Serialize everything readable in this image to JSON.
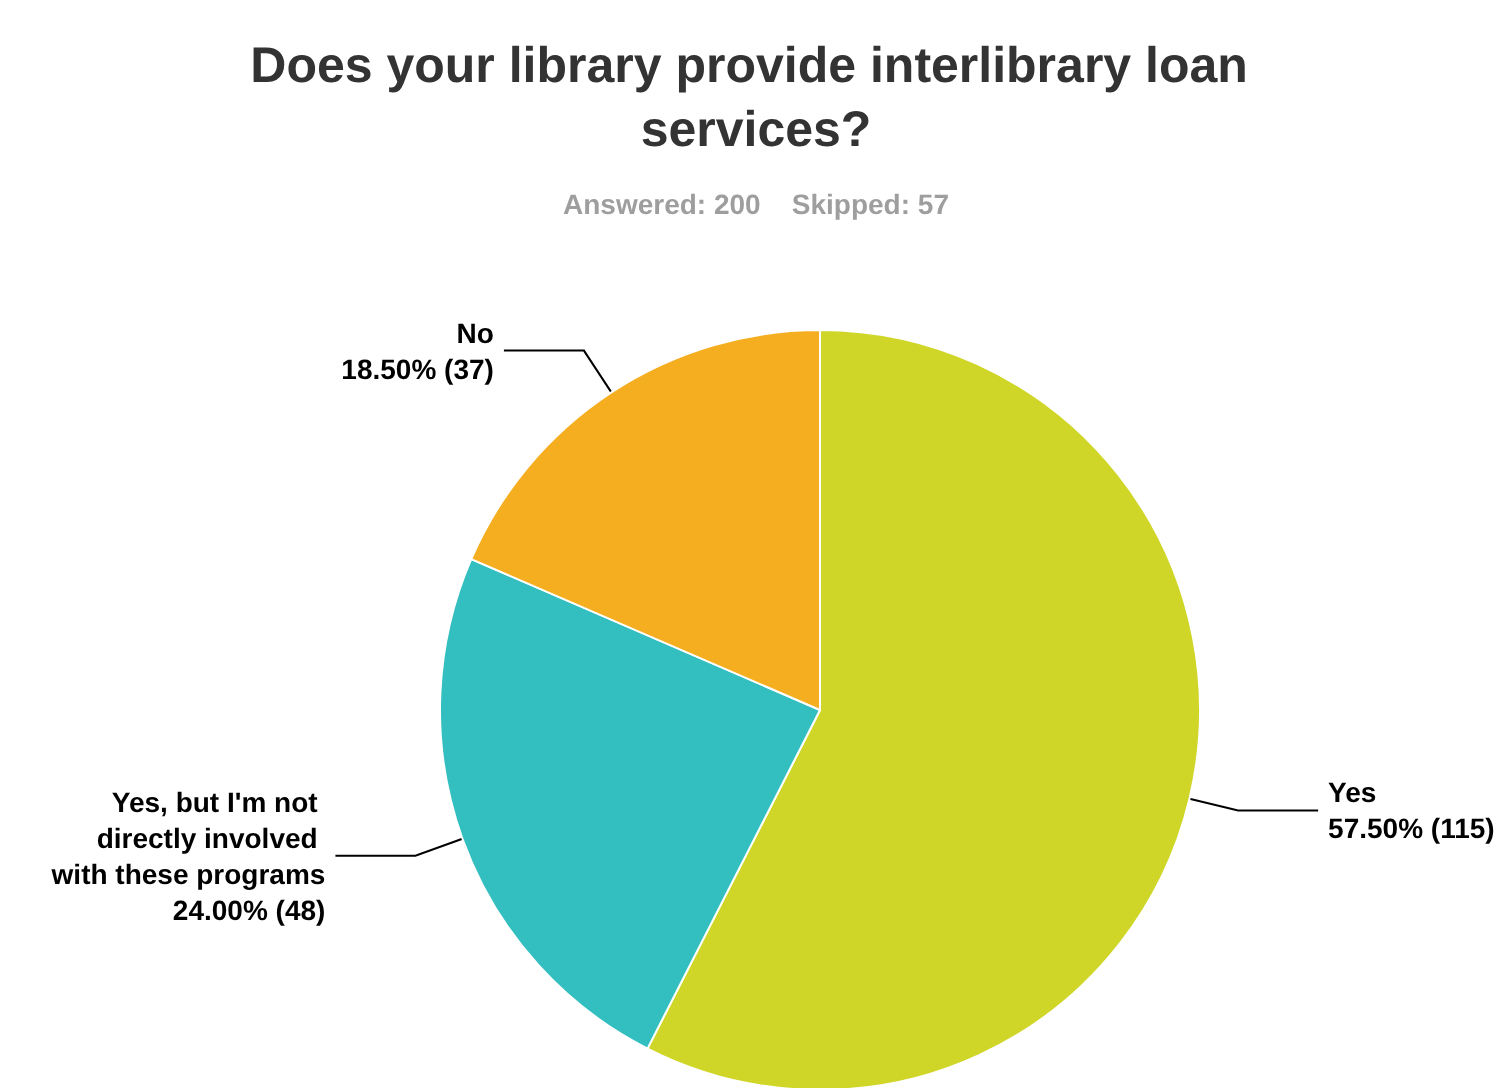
{
  "chart_data": {
    "type": "pie",
    "title": "Does your library provide interlibrary loan services?",
    "subtitle": "Answered: 200    Skipped: 57",
    "categories": [
      "Yes",
      "Yes, but I'm not directly involved with these programs",
      "No"
    ],
    "values": [
      57.5,
      24.0,
      18.5
    ],
    "value_labels": [
      "57.50% (115)",
      "24.00% (48)",
      "18.50% (37)"
    ],
    "colors": [
      "#cfd628",
      "#33bec0",
      "#f5ae20"
    ],
    "legend": false
  }
}
